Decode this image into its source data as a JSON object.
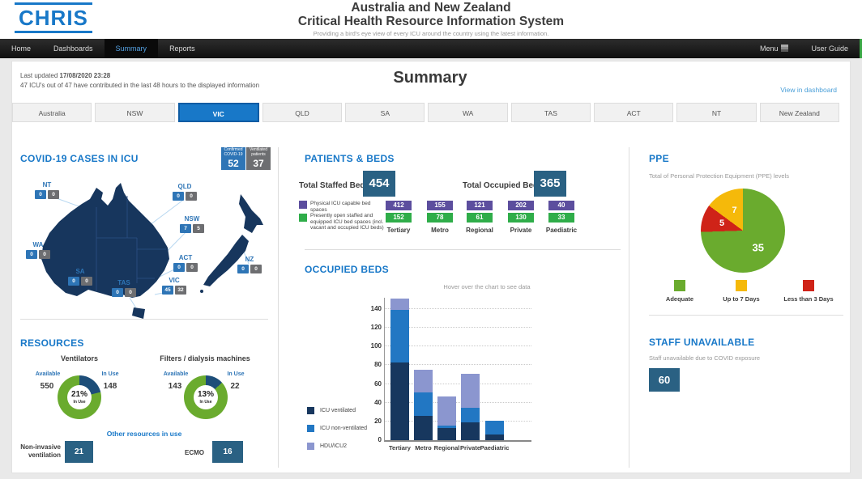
{
  "header": {
    "logo": "CHRIS",
    "title_line1": "Australia and New Zealand",
    "title_line2": "Critical Health Resource Information System",
    "subtitle": "Providing a bird's eye view of every ICU around the country using the latest information."
  },
  "nav": {
    "items": [
      "Home",
      "Dashboards",
      "Summary",
      "Reports"
    ],
    "active": "Summary",
    "menu_label": "Menu",
    "user_guide_label": "User Guide"
  },
  "info": {
    "last_updated_label": "Last updated",
    "last_updated_value": "17/08/2020 23:28",
    "contribution": "47 ICU's out of 47 have contributed in the last 48 hours to the displayed information",
    "page_title": "Summary",
    "view_link": "View in dashboard"
  },
  "region_tabs": {
    "active": "VIC",
    "items": [
      "Australia",
      "NSW",
      "VIC",
      "QLD",
      "SA",
      "WA",
      "TAS",
      "ACT",
      "NT",
      "New Zealand"
    ]
  },
  "covid": {
    "title": "COVID-19 CASES IN ICU",
    "badges": [
      {
        "label": "Confirmed COVID-19",
        "value": "52"
      },
      {
        "label": "Ventilated patients",
        "value": "37"
      }
    ],
    "states": [
      {
        "name": "NT",
        "confirmed": "0",
        "ventilated": "0"
      },
      {
        "name": "QLD",
        "confirmed": "0",
        "ventilated": "0"
      },
      {
        "name": "NSW",
        "confirmed": "7",
        "ventilated": "5"
      },
      {
        "name": "WA",
        "confirmed": "0",
        "ventilated": "0"
      },
      {
        "name": "ACT",
        "confirmed": "0",
        "ventilated": "0"
      },
      {
        "name": "SA",
        "confirmed": "0",
        "ventilated": "0"
      },
      {
        "name": "TAS",
        "confirmed": "0",
        "ventilated": "0"
      },
      {
        "name": "VIC",
        "confirmed": "45",
        "ventilated": "32"
      },
      {
        "name": "NZ",
        "confirmed": "0",
        "ventilated": "0"
      }
    ]
  },
  "patients_beds": {
    "title": "PATIENTS & BEDS",
    "staffed_label": "Total Staffed Beds",
    "staffed_value": "454",
    "occupied_label": "Total Occupied Beds",
    "occupied_value": "365",
    "legend_physical": "Physical ICU capable bed spaces",
    "legend_open": "Presently open staffed and equipped ICU bed spaces (incl. vacant and occupied ICU beds)",
    "columns": [
      {
        "label": "Tertiary",
        "physical": "412",
        "open": "152"
      },
      {
        "label": "Metro",
        "physical": "155",
        "open": "78"
      },
      {
        "label": "Regional",
        "physical": "121",
        "open": "61"
      },
      {
        "label": "Private",
        "physical": "202",
        "open": "130"
      },
      {
        "label": "Paediatric",
        "physical": "40",
        "open": "33"
      }
    ]
  },
  "occupied_beds": {
    "title": "OCCUPIED BEDS",
    "hint": "Hover over the chart to see data"
  },
  "ppe": {
    "title": "PPE",
    "subtitle": "Total of Personal Protection Equipment (PPE) levels"
  },
  "staff": {
    "title": "STAFF UNAVAILABLE",
    "subtitle": "Staff unavailable due to COVID exposure",
    "value": "60"
  },
  "resources": {
    "title": "RESOURCES",
    "available_label": "Available",
    "in_use_label": "In Use",
    "ventilators": {
      "title": "Ventilators",
      "available": "550",
      "in_use": "148",
      "pct": "21%",
      "center_label": "In Use"
    },
    "filters": {
      "title": "Filters / dialysis machines",
      "available": "143",
      "in_use": "22",
      "pct": "13%",
      "center_label": "In Use"
    },
    "other_title": "Other resources in use",
    "niv_label": "Non-invasive ventilation",
    "niv_value": "21",
    "ecmo_label": "ECMO",
    "ecmo_value": "16"
  },
  "chart_data": [
    {
      "type": "bar",
      "stacked": true,
      "title": "OCCUPIED BEDS",
      "categories": [
        "Tertiary",
        "Metro",
        "Regional",
        "Private",
        "Paediatric"
      ],
      "series": [
        {
          "name": "ICU ventilated",
          "color": "#17375e",
          "values": [
            83,
            26,
            13,
            19,
            6
          ]
        },
        {
          "name": "ICU non-ventilated",
          "color": "#2277c3",
          "values": [
            56,
            25,
            3,
            16,
            15
          ]
        },
        {
          "name": "HDU/ICU2",
          "color": "#8b96cf",
          "values": [
            12,
            24,
            31,
            36,
            0
          ]
        }
      ],
      "yticks": [
        0,
        20,
        40,
        60,
        80,
        100,
        120,
        140
      ],
      "ylim": [
        0,
        152
      ],
      "grid": "dotted-horizontal",
      "legend_position": "bottom-left"
    },
    {
      "type": "pie",
      "title": "PPE",
      "slices": [
        {
          "label": "Adequate",
          "value": 35,
          "color": "#6aab2e"
        },
        {
          "label": "Up to 7 Days",
          "value": 7,
          "color": "#f5b90a"
        },
        {
          "label": "Less than 3 Days",
          "value": 5,
          "color": "#cf2318"
        }
      ]
    },
    {
      "type": "donut",
      "title": "Ventilators",
      "available": 550,
      "in_use": 148,
      "pct_in_use": "21%",
      "in_use_color": "#1d4e79",
      "available_color": "#6aab2e"
    },
    {
      "type": "donut",
      "title": "Filters / dialysis machines",
      "available": 143,
      "in_use": 22,
      "pct_in_use": "13%",
      "in_use_color": "#1d4e79",
      "available_color": "#6aab2e"
    }
  ]
}
